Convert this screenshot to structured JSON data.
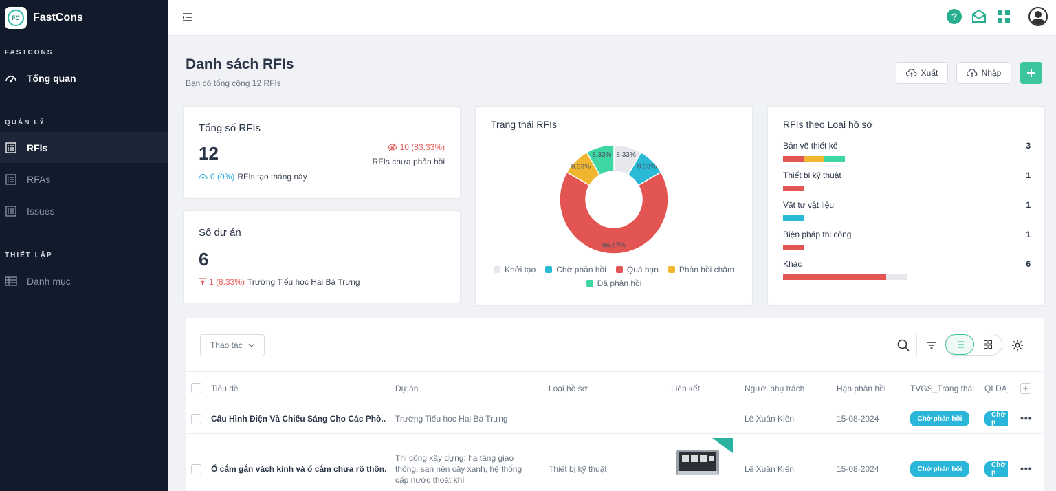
{
  "brand": {
    "name": "FastCons",
    "logo_text": "FC"
  },
  "sidebar": {
    "sections": [
      {
        "title": "FASTCONS"
      },
      {
        "title": "QUẢN LÝ"
      },
      {
        "title": "THIẾT LẬP"
      }
    ],
    "items": [
      {
        "label": "Tổng quan",
        "icon": "dashboard-icon"
      },
      {
        "label": "RFIs",
        "icon": "list-icon",
        "active": true
      },
      {
        "label": "RFAs",
        "icon": "list-icon"
      },
      {
        "label": "Issues",
        "icon": "list-icon"
      },
      {
        "label": "Danh mục",
        "icon": "table-icon"
      }
    ]
  },
  "header": {
    "icons": [
      "help-icon",
      "mail-icon",
      "apps-icon",
      "user-avatar"
    ]
  },
  "page": {
    "title": "Danh sách RFIs",
    "subtitle": "Bạn có tổng cộng 12 RFIs",
    "export_label": "Xuất",
    "import_label": "Nhập"
  },
  "stats": {
    "total": {
      "title": "Tổng số RFIs",
      "value": "12",
      "unanswered": "10 (83.33%)",
      "unanswered_label": "RFIs chưa phản hồi",
      "this_month": "0 (0%)",
      "this_month_label": "RFIs tạo tháng này"
    },
    "projects": {
      "title": "Số dự án",
      "value": "6",
      "top": "1 (8.33%)",
      "top_label": "Trường Tiểu học Hai Bà Trưng"
    }
  },
  "colors": {
    "created": "#e6e8ee",
    "waiting": "#2bbad6",
    "overdue": "#e25552",
    "late": "#f0b630",
    "answered": "#3ed6a2",
    "accent": "#3cc59f"
  },
  "chart_data": [
    {
      "type": "pie",
      "title": "Trạng thái RFIs",
      "labels": [
        "Khởi tạo",
        "Chờ phản hồi",
        "Quá hạn",
        "Phản hồi chậm",
        "Đã phản hồi"
      ],
      "values": [
        8.33,
        8.33,
        66.67,
        8.33,
        8.33
      ],
      "value_labels": [
        "8.33%",
        "8.33%",
        "66.67%",
        "8.33%",
        "8.33%"
      ],
      "colors": [
        "#e6e8ee",
        "#2bbad6",
        "#e25552",
        "#f0b630",
        "#3ed6a2"
      ],
      "donut": true,
      "legend": "bottom"
    },
    {
      "type": "bar",
      "title": "RFIs theo Loại hồ sơ",
      "categories": [
        "Bản vẽ thiết kế",
        "Thiết bị kỹ thuật",
        "Vật tư vật liệu",
        "Biện pháp thi công",
        "Khác"
      ],
      "values": [
        3,
        1,
        1,
        1,
        6
      ],
      "series": [
        {
          "name": "Quá hạn",
          "values": [
            1,
            1,
            0,
            1,
            5
          ]
        },
        {
          "name": "Phản hồi chậm",
          "values": [
            1,
            0,
            0,
            0,
            0
          ]
        },
        {
          "name": "Đã phản hồi",
          "values": [
            1,
            0,
            0,
            0,
            0
          ]
        },
        {
          "name": "Chờ phản hồi",
          "values": [
            0,
            0,
            1,
            0,
            0
          ]
        },
        {
          "name": "Khởi tạo",
          "values": [
            0,
            0,
            0,
            0,
            1
          ]
        }
      ],
      "colors": [
        "#e25552",
        "#f0b630",
        "#3ed6a2",
        "#2bbad6",
        "#e6e8ee"
      ]
    }
  ],
  "table": {
    "action_label": "Thao tác",
    "columns": [
      "Tiêu đề",
      "Dự án",
      "Loại hồ sơ",
      "Liên kết",
      "Người phụ trách",
      "Hạn phản hồi",
      "TVGS_Trạng thái",
      "QLDA_"
    ],
    "rows": [
      {
        "title": "Cấu Hình Điện Và Chiếu Sáng Cho Các Phò...",
        "project": "Trường Tiểu học Hai Bà Trưng",
        "type": "",
        "link": "",
        "owner": "Lê Xuân Kiên",
        "due": "15-08-2024",
        "tvgs": "Chờ phản hồi",
        "qlda": "Chờ p"
      },
      {
        "title": "Ổ cắm gắn vách kính và ổ cắm chưa rõ thôn...",
        "project": "Thi công xây dựng: hạ tầng giao thông, san nền cây xanh, hệ thống cấp nước thoát khí",
        "type": "Thiết bị kỹ thuật",
        "link": "image",
        "owner": "Lê Xuân Kiên",
        "due": "15-08-2024",
        "tvgs": "Chờ phản hồi",
        "qlda": "Chờ p"
      }
    ]
  }
}
